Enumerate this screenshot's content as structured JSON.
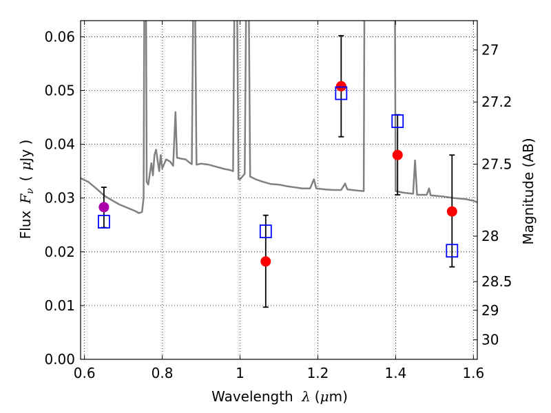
{
  "chart_data": {
    "type": "scatter",
    "xlabel": {
      "text": "Wavelength",
      "symbol": "λ",
      "unit_open": "(",
      "unit_mu": "μ",
      "unit_rest": "m)"
    },
    "ylabel": {
      "text": "Flux",
      "symbol": "F",
      "symbol_sub": "ν",
      "unit_open": "(",
      "unit_mu": "μ",
      "unit_rest": "Jy )"
    },
    "ylabel_right": "Magnitude (AB)",
    "xlim": [
      0.59,
      1.61
    ],
    "ylim": [
      0.0,
      0.063
    ],
    "grid": true,
    "legend": "none",
    "x_ticks": [
      {
        "value": 0.6,
        "label": "0.6"
      },
      {
        "value": 0.8,
        "label": "0.8"
      },
      {
        "value": 1.0,
        "label": "1"
      },
      {
        "value": 1.2,
        "label": "1.2"
      },
      {
        "value": 1.4,
        "label": "1.4"
      },
      {
        "value": 1.6,
        "label": "1.6"
      }
    ],
    "y_ticks": [
      {
        "value": 0.0,
        "label": "0.00"
      },
      {
        "value": 0.01,
        "label": "0.01"
      },
      {
        "value": 0.02,
        "label": "0.02"
      },
      {
        "value": 0.03,
        "label": "0.03"
      },
      {
        "value": 0.04,
        "label": "0.04"
      },
      {
        "value": 0.05,
        "label": "0.05"
      },
      {
        "value": 0.06,
        "label": "0.06"
      }
    ],
    "right_ticks": [
      {
        "mag": 27.0,
        "label": "27"
      },
      {
        "mag": 27.2,
        "label": "27.2"
      },
      {
        "mag": 27.5,
        "label": "27.5"
      },
      {
        "mag": 28.0,
        "label": "28"
      },
      {
        "mag": 28.5,
        "label": "28.5"
      },
      {
        "mag": 29.0,
        "label": "29"
      },
      {
        "mag": 30.0,
        "label": "30"
      }
    ],
    "observed": [
      {
        "x": 0.65,
        "y": 0.0283,
        "yerr_low": 0.0245,
        "yerr_high": 0.032,
        "color": "#aa00aa"
      },
      {
        "x": 1.066,
        "y": 0.0182,
        "yerr_low": 0.0097,
        "yerr_high": 0.0268,
        "color": "#ff0000"
      },
      {
        "x": 1.26,
        "y": 0.0508,
        "yerr_low": 0.0414,
        "yerr_high": 0.0602,
        "color": "#ff0000"
      },
      {
        "x": 1.405,
        "y": 0.038,
        "yerr_low": 0.0306,
        "yerr_high": 0.0455,
        "color": "#ff0000"
      },
      {
        "x": 1.545,
        "y": 0.0275,
        "yerr_low": 0.0172,
        "yerr_high": 0.038,
        "color": "#ff0000"
      }
    ],
    "model_points": [
      {
        "x": 0.65,
        "y": 0.0256
      },
      {
        "x": 1.066,
        "y": 0.0238
      },
      {
        "x": 1.26,
        "y": 0.0495
      },
      {
        "x": 1.405,
        "y": 0.0443
      },
      {
        "x": 1.545,
        "y": 0.0202
      }
    ],
    "model_spectrum": [
      [
        0.59,
        0.0337
      ],
      [
        0.61,
        0.033
      ],
      [
        0.63,
        0.0318
      ],
      [
        0.65,
        0.0305
      ],
      [
        0.67,
        0.0296
      ],
      [
        0.69,
        0.0288
      ],
      [
        0.71,
        0.0282
      ],
      [
        0.73,
        0.0276
      ],
      [
        0.74,
        0.0272
      ],
      [
        0.748,
        0.0274
      ],
      [
        0.752,
        0.03
      ],
      [
        0.754,
        0.07
      ],
      [
        0.758,
        0.07
      ],
      [
        0.76,
        0.033
      ],
      [
        0.764,
        0.0325
      ],
      [
        0.768,
        0.0345
      ],
      [
        0.772,
        0.0365
      ],
      [
        0.776,
        0.0342
      ],
      [
        0.78,
        0.038
      ],
      [
        0.784,
        0.039
      ],
      [
        0.788,
        0.037
      ],
      [
        0.792,
        0.035
      ],
      [
        0.796,
        0.038
      ],
      [
        0.8,
        0.0355
      ],
      [
        0.81,
        0.0372
      ],
      [
        0.82,
        0.0368
      ],
      [
        0.828,
        0.036
      ],
      [
        0.834,
        0.046
      ],
      [
        0.838,
        0.0375
      ],
      [
        0.85,
        0.0373
      ],
      [
        0.86,
        0.0372
      ],
      [
        0.87,
        0.0366
      ],
      [
        0.876,
        0.0363
      ],
      [
        0.88,
        0.07
      ],
      [
        0.884,
        0.07
      ],
      [
        0.888,
        0.0362
      ],
      [
        0.9,
        0.0364
      ],
      [
        0.92,
        0.0362
      ],
      [
        0.94,
        0.0358
      ],
      [
        0.96,
        0.0354
      ],
      [
        0.975,
        0.0352
      ],
      [
        0.982,
        0.035
      ],
      [
        0.986,
        0.07
      ],
      [
        0.992,
        0.07
      ],
      [
        0.996,
        0.0335
      ],
      [
        1.0,
        0.0335
      ],
      [
        1.012,
        0.0345
      ],
      [
        1.016,
        0.07
      ],
      [
        1.022,
        0.07
      ],
      [
        1.026,
        0.034
      ],
      [
        1.04,
        0.0335
      ],
      [
        1.06,
        0.033
      ],
      [
        1.08,
        0.0326
      ],
      [
        1.1,
        0.0325
      ],
      [
        1.12,
        0.0322
      ],
      [
        1.14,
        0.032
      ],
      [
        1.16,
        0.0318
      ],
      [
        1.18,
        0.0318
      ],
      [
        1.19,
        0.0335
      ],
      [
        1.196,
        0.0318
      ],
      [
        1.22,
        0.0316
      ],
      [
        1.24,
        0.0315
      ],
      [
        1.26,
        0.0315
      ],
      [
        1.27,
        0.0327
      ],
      [
        1.276,
        0.0316
      ],
      [
        1.3,
        0.0314
      ],
      [
        1.318,
        0.0313
      ],
      [
        1.32,
        0.07
      ],
      [
        1.398,
        0.07
      ],
      [
        1.4,
        0.0313
      ],
      [
        1.42,
        0.031
      ],
      [
        1.445,
        0.0308
      ],
      [
        1.45,
        0.037
      ],
      [
        1.455,
        0.0306
      ],
      [
        1.48,
        0.0306
      ],
      [
        1.486,
        0.0318
      ],
      [
        1.49,
        0.0305
      ],
      [
        1.52,
        0.0303
      ],
      [
        1.55,
        0.03
      ],
      [
        1.58,
        0.0298
      ],
      [
        1.6,
        0.0295
      ],
      [
        1.61,
        0.0292
      ]
    ],
    "colors": {
      "spectrum": "#808080",
      "errorbar": "#000000",
      "model_marker": "#0000ff",
      "grid": "#000000"
    }
  }
}
